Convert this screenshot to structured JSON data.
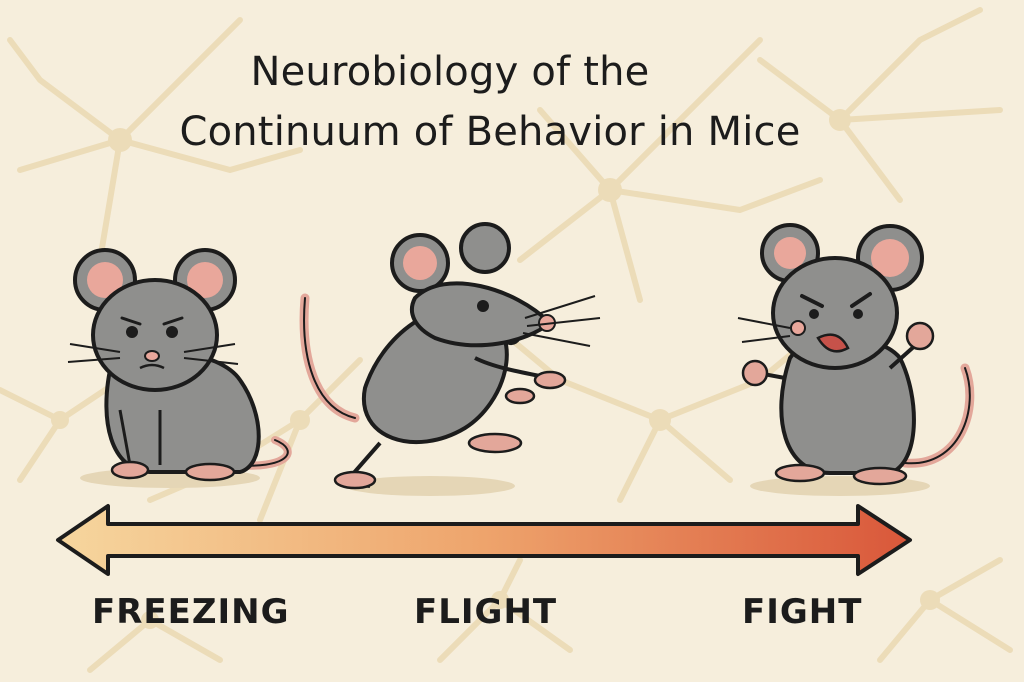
{
  "title": {
    "line1": "Neurobiology of the",
    "line2": "Continuum of Behavior in Mice"
  },
  "continuum": {
    "labels": [
      "FREEZING",
      "FLIGHT",
      "FIGHT"
    ],
    "arrow": {
      "direction": "bidirectional",
      "color_start": "#f4c78a",
      "color_end": "#d9573a"
    }
  },
  "mice": [
    {
      "behavior": "freezing",
      "pose": "crouched, worried"
    },
    {
      "behavior": "flight",
      "pose": "running, startled"
    },
    {
      "behavior": "fight",
      "pose": "standing, fists raised, angry"
    }
  ],
  "colors": {
    "background": "#f6eedc",
    "neuron": "#ecdcb8",
    "mouse_body": "#8f8f8d",
    "ear_inner": "#e9a79b"
  }
}
